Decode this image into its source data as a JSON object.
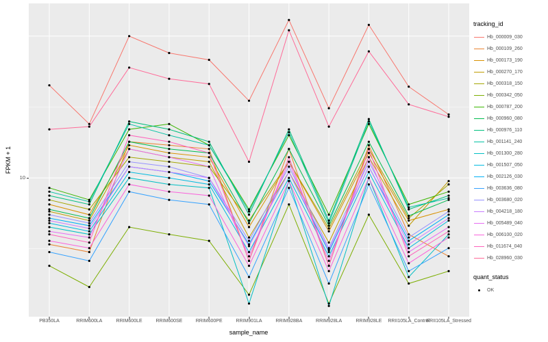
{
  "figure": {
    "panel_background": "#EBEBEB",
    "grid_color": "#FFFFFF",
    "point_color": "#000000",
    "text_color": "#4D4D4D"
  },
  "axes": {
    "y_title": "FPKM + 1",
    "x_title": "sample_name",
    "y_tick_label": "10"
  },
  "legend": {
    "tracking_title": "tracking_id",
    "quant_title": "quant_status",
    "quant_item": "OK"
  },
  "chart_data": {
    "type": "line",
    "y_scale": "log10",
    "title": "",
    "xlabel": "sample_name",
    "ylabel": "FPKM + 1",
    "ylim": [
      1.05,
      170
    ],
    "y_ticks": [
      10
    ],
    "grid": true,
    "legend_position": "right",
    "marker": {
      "legend_title": "quant_status",
      "label": "OK",
      "color": "#000000"
    },
    "categories": [
      "PB350LA",
      "RRIM600LA",
      "RRIM600LE",
      "RRIM600SE",
      "RRIM600PE",
      "RRIM901LA",
      "RRIM928BA",
      "RRIM928LA",
      "RRIM928LE",
      "RRII105LA_Control",
      "RRII105LA_Stressed"
    ],
    "series": [
      {
        "name": "Hb_000009_030",
        "color": "#F8766D",
        "values": [
          45,
          24,
          100,
          76,
          68,
          35,
          130,
          31,
          120,
          44,
          28
        ]
      },
      {
        "name": "Hb_000109_260",
        "color": "#EA8331",
        "values": [
          3.4,
          3.0,
          18,
          17,
          16,
          2.6,
          16,
          2.4,
          17,
          4.0,
          2.8
        ]
      },
      {
        "name": "Hb_000173_190",
        "color": "#D89000",
        "values": [
          6.5,
          5.5,
          17,
          15,
          14,
          4.5,
          13,
          4.2,
          15,
          5.0,
          6.0
        ]
      },
      {
        "name": "Hb_000270_170",
        "color": "#C09B00",
        "values": [
          5.8,
          5.0,
          16,
          14,
          13,
          3.8,
          11,
          3.5,
          14,
          4.6,
          9.5
        ]
      },
      {
        "name": "Hb_000318_150",
        "color": "#A3A500",
        "values": [
          7.0,
          6.0,
          14,
          13,
          12,
          5.0,
          13,
          4.4,
          16,
          5.2,
          9.0
        ]
      },
      {
        "name": "Hb_000342_050",
        "color": "#7CAE00",
        "values": [
          2.4,
          1.7,
          4.5,
          4.0,
          3.6,
          1.5,
          6.5,
          1.3,
          5.5,
          1.8,
          2.2
        ]
      },
      {
        "name": "Hb_000787_200",
        "color": "#39B600",
        "values": [
          8.5,
          7.0,
          22,
          24,
          17,
          6.0,
          20,
          5.5,
          24,
          6.5,
          8.0
        ]
      },
      {
        "name": "Hb_000960_080",
        "color": "#00BB4E",
        "values": [
          6.0,
          5.2,
          18,
          16,
          15,
          4.8,
          16,
          4.6,
          18,
          5.4,
          7.0
        ]
      },
      {
        "name": "Hb_000976_110",
        "color": "#00BF7D",
        "values": [
          7.5,
          6.5,
          25,
          22,
          18,
          5.5,
          22,
          5.0,
          26,
          6.0,
          7.5
        ]
      },
      {
        "name": "Hb_001141_240",
        "color": "#00C1A3",
        "values": [
          8.0,
          6.8,
          24,
          20,
          17,
          5.8,
          21,
          4.8,
          25,
          6.2,
          7.2
        ]
      },
      {
        "name": "Hb_001300_280",
        "color": "#00BFC4",
        "values": [
          4.5,
          4.0,
          10,
          9,
          8.5,
          1.3,
          9.5,
          1.25,
          10,
          2.0,
          4.0
        ]
      },
      {
        "name": "Hb_001507_050",
        "color": "#00BAE0",
        "values": [
          4.8,
          4.2,
          11,
          10,
          9.0,
          3.0,
          10,
          2.8,
          11,
          3.2,
          5.0
        ]
      },
      {
        "name": "Hb_002126_030",
        "color": "#00B0F6",
        "values": [
          5.2,
          4.6,
          12,
          11,
          9.5,
          3.4,
          11,
          3.0,
          12,
          3.6,
          5.5
        ]
      },
      {
        "name": "Hb_003636_080",
        "color": "#35A2FF",
        "values": [
          3.0,
          2.6,
          8.0,
          7.0,
          6.5,
          2.0,
          8.5,
          1.8,
          9.0,
          2.2,
          3.2
        ]
      },
      {
        "name": "Hb_003680_020",
        "color": "#9590FF",
        "values": [
          5.5,
          4.8,
          13,
          12,
          10,
          3.6,
          12,
          3.2,
          13,
          3.8,
          5.8
        ]
      },
      {
        "name": "Hb_004218_180",
        "color": "#C77CFF",
        "values": [
          5.0,
          4.4,
          12,
          11,
          10,
          3.3,
          11,
          3.1,
          12,
          3.4,
          5.2
        ]
      },
      {
        "name": "Hb_005489_040",
        "color": "#E76BF3",
        "values": [
          4.2,
          3.8,
          16,
          14,
          12,
          2.8,
          13,
          2.6,
          14,
          3.0,
          4.5
        ]
      },
      {
        "name": "Hb_006100_020",
        "color": "#FA62DB",
        "values": [
          3.6,
          3.2,
          9.0,
          8.0,
          7.5,
          2.4,
          9.5,
          2.2,
          10,
          2.5,
          3.8
        ]
      },
      {
        "name": "Hb_011674_040",
        "color": "#FF62BC",
        "values": [
          4.0,
          3.5,
          20,
          18,
          15,
          2.6,
          14,
          2.4,
          16,
          2.8,
          4.2
        ]
      },
      {
        "name": "Hb_028960_030",
        "color": "#FF6A98",
        "values": [
          22,
          23,
          60,
          50,
          46,
          13,
          110,
          23,
          78,
          33,
          27
        ]
      }
    ]
  }
}
